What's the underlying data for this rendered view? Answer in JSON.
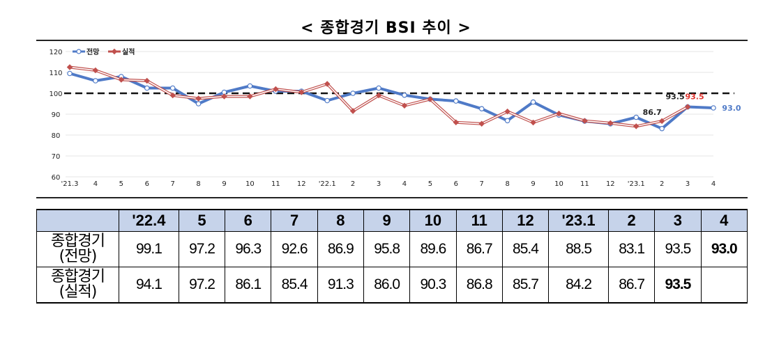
{
  "title": "< 종합경기 BSI 추이 >",
  "chart_data": {
    "type": "line",
    "x": [
      "'21.3",
      "4",
      "5",
      "6",
      "7",
      "8",
      "9",
      "10",
      "11",
      "12",
      "'22.1",
      "2",
      "3",
      "4",
      "5",
      "6",
      "7",
      "8",
      "9",
      "10",
      "11",
      "12",
      "'23.1",
      "2",
      "3",
      "4"
    ],
    "series": [
      {
        "name": "전망",
        "color": "#4f7ac7",
        "values": [
          109.5,
          106.0,
          108.0,
          102.5,
          102.5,
          95.0,
          100.5,
          103.5,
          101.0,
          101.0,
          96.5,
          100.0,
          102.5,
          99.1,
          97.2,
          96.3,
          92.6,
          86.9,
          95.8,
          89.6,
          86.7,
          85.4,
          88.5,
          83.1,
          93.5,
          93.0
        ]
      },
      {
        "name": "실적",
        "color": "#c0504d",
        "values": [
          112.5,
          111.0,
          106.5,
          106.0,
          99.0,
          97.5,
          98.5,
          98.5,
          102.0,
          100.5,
          104.5,
          91.5,
          99.0,
          94.1,
          97.2,
          86.1,
          85.4,
          91.3,
          86.0,
          90.3,
          86.8,
          85.7,
          84.2,
          86.7,
          93.5,
          null
        ]
      }
    ],
    "ylim": [
      60,
      120
    ],
    "yticks": [
      "60",
      "70",
      "80",
      "90",
      "100",
      "110",
      "120"
    ],
    "reference_line": 100,
    "annotations": [
      "86.7",
      "93.5",
      "93.5",
      "93.0"
    ],
    "legend": "top-left"
  },
  "table": {
    "headers": [
      "'22.4",
      "5",
      "6",
      "7",
      "8",
      "9",
      "10",
      "11",
      "12",
      "'23.1",
      "2",
      "3",
      "4"
    ],
    "rows": [
      {
        "label_line1": "종합경기",
        "label_line2": "(전망)",
        "values": [
          "99.1",
          "97.2",
          "96.3",
          "92.6",
          "86.9",
          "95.8",
          "89.6",
          "86.7",
          "85.4",
          "88.5",
          "83.1",
          "93.5",
          "93.0"
        ]
      },
      {
        "label_line1": "종합경기",
        "label_line2": "(실적)",
        "values": [
          "94.1",
          "97.2",
          "86.1",
          "85.4",
          "91.3",
          "86.0",
          "90.3",
          "86.8",
          "85.7",
          "84.2",
          "86.7",
          "93.5",
          ""
        ]
      }
    ]
  }
}
